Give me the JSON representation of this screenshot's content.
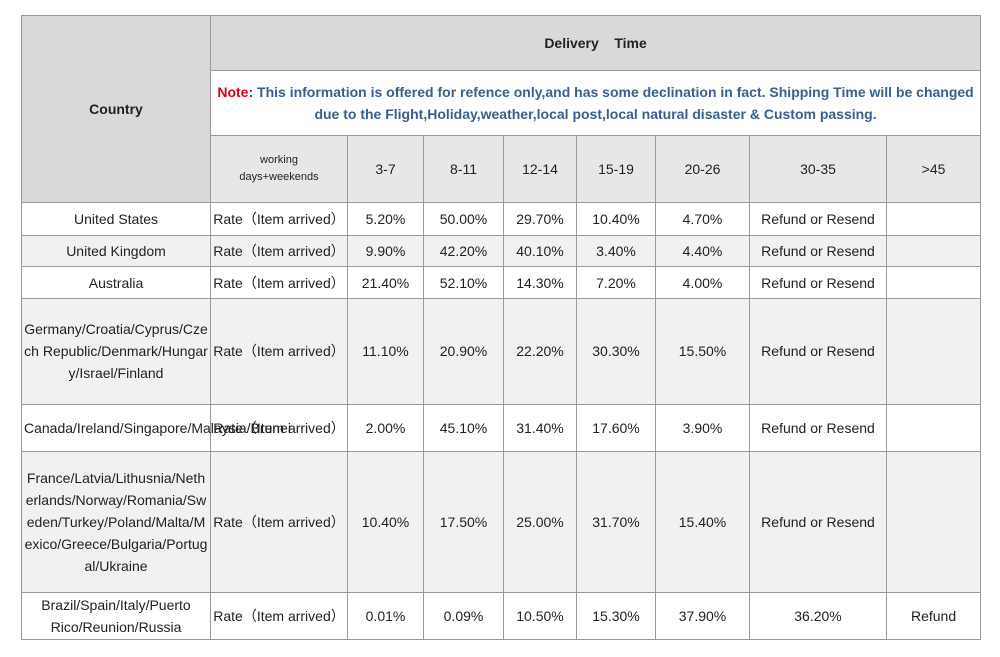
{
  "header": {
    "country_label": "Country",
    "title": "Delivery    Time",
    "note_label": "Note:",
    "note_text": "This information is offered for refence only,and has some declination in fact. Shipping Time will be changed due to the Flight,Holiday,weather,local post,local natural disaster & Custom passing."
  },
  "columns": {
    "working_line1": "working",
    "working_line2": "days+weekends",
    "ranges": [
      "3-7",
      "8-11",
      "12-14",
      "15-19",
      "20-26",
      "30-35",
      ">45"
    ]
  },
  "rows": [
    {
      "country": "United  States",
      "rate_label": "Rate（Item  arrived）",
      "values": [
        "5.20%",
        "50.00%",
        "29.70%",
        "10.40%",
        "4.70%",
        "Refund or Resend",
        ""
      ]
    },
    {
      "country": "United  Kingdom",
      "rate_label": "Rate（Item  arrived）",
      "values": [
        "9.90%",
        "42.20%",
        "40.10%",
        "3.40%",
        "4.40%",
        "Refund or Resend",
        ""
      ]
    },
    {
      "country": "Australia",
      "rate_label": "Rate（Item  arrived）",
      "values": [
        "21.40%",
        "52.10%",
        "14.30%",
        "7.20%",
        "4.00%",
        "Refund or Resend",
        ""
      ]
    },
    {
      "country": "Germany/Croatia/Cyprus/Czech Republic/Denmark/Hungary/Israel/Finland",
      "rate_label": "Rate（Item  arrived）",
      "values": [
        "11.10%",
        "20.90%",
        "22.20%",
        "30.30%",
        "15.50%",
        "Refund or Resend",
        ""
      ]
    },
    {
      "country": "Canada/Ireland/Singapore/Malaysia/Brunei",
      "rate_label": "Rate（Item  arrived）",
      "values": [
        "2.00%",
        "45.10%",
        "31.40%",
        "17.60%",
        "3.90%",
        "Refund or Resend",
        ""
      ]
    },
    {
      "country": "France/Latvia/Lithusnia/Netherlands/Norway/Romania/Sweden/Turkey/Poland/Malta/Mexico/Greece/Bulgaria/Portugal/Ukraine",
      "rate_label": "Rate（Item  arrived）",
      "values": [
        "10.40%",
        "17.50%",
        "25.00%",
        "31.70%",
        "15.40%",
        "Refund or Resend",
        ""
      ]
    },
    {
      "country": "Brazil/Spain/Italy/Puerto Rico/Reunion/Russia",
      "rate_label": "Rate（Item  arrived）",
      "values": [
        "0.01%",
        "0.09%",
        "10.50%",
        "15.30%",
        "37.90%",
        "36.20%",
        "Refund"
      ]
    }
  ]
}
